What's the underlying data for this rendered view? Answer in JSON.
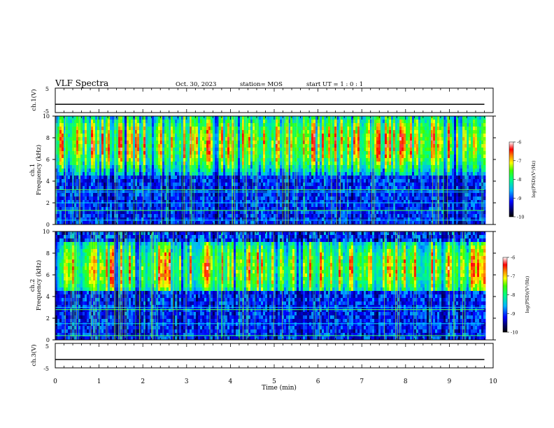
{
  "header": {
    "title": "VLF Spectra",
    "date": "Oct. 30, 2023",
    "station": "station= MOS",
    "start_ut": "start  UT =   1 : 0  : 1"
  },
  "chart_data": [
    {
      "type": "line",
      "panel": "ch1-waveform",
      "ylabel": "ch.1(V)",
      "ylim": [
        -5,
        5
      ],
      "yticks": [
        "5",
        "-5"
      ],
      "series": [
        {
          "x": [
            0,
            9.8
          ],
          "values": [
            -1.6,
            -1.6
          ]
        }
      ]
    },
    {
      "type": "heatmap",
      "panel": "ch1-spectrogram",
      "ylabel_top": "ch.1",
      "ylabel": "Frequency (kHz)",
      "ylim": [
        0,
        10
      ],
      "yticks": [
        "0",
        "2",
        "4",
        "6",
        "8",
        "10"
      ],
      "x_extent_min": [
        0,
        9.8
      ],
      "strong_band_khz": [
        4.5,
        10
      ],
      "peak_khz": 7.5,
      "lines_khz": [
        3.0,
        3.2,
        2.0,
        1.3,
        0.4
      ],
      "colorbar": {
        "label": "log(PSD)(V²/Hz)",
        "ticks": [
          "-6",
          "-7",
          "-8",
          "-9",
          "-10"
        ],
        "range": [
          -10,
          -6
        ]
      }
    },
    {
      "type": "heatmap",
      "panel": "ch2-spectrogram",
      "ylabel_top": "ch.2",
      "ylabel": "Frequency (kHz)",
      "ylim": [
        0,
        10
      ],
      "yticks": [
        "0",
        "2",
        "4",
        "6",
        "8",
        "10"
      ],
      "x_extent_min": [
        0,
        9.8
      ],
      "strong_band_khz": [
        4.5,
        9
      ],
      "peak_khz": 6.6,
      "lines_khz": [
        3.0,
        2.8,
        1.5,
        0.4
      ],
      "colorbar": {
        "label": "log(PSD)(V²/Hz)",
        "ticks": [
          "-6",
          "-7",
          "-8",
          "-9",
          "-10"
        ],
        "range": [
          -10,
          -6
        ]
      }
    },
    {
      "type": "line",
      "panel": "ch3-waveform",
      "ylabel": "ch.3(V)",
      "ylim": [
        -5,
        5
      ],
      "yticks": [
        "5",
        "-5"
      ],
      "series": [
        {
          "x": [
            0,
            9.8
          ],
          "values": [
            -1.6,
            -1.6
          ]
        }
      ]
    }
  ],
  "xaxis": {
    "label": "Time (min)",
    "ticks": [
      "0",
      "1",
      "2",
      "3",
      "4",
      "5",
      "6",
      "7",
      "8",
      "9",
      "10"
    ],
    "range": [
      0,
      10
    ]
  }
}
